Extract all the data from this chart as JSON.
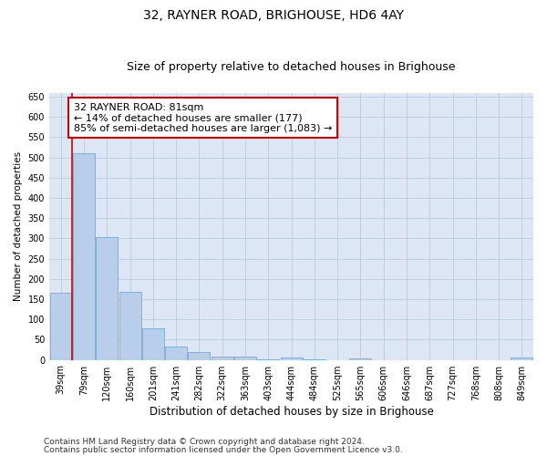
{
  "title": "32, RAYNER ROAD, BRIGHOUSE, HD6 4AY",
  "subtitle": "Size of property relative to detached houses in Brighouse",
  "xlabel": "Distribution of detached houses by size in Brighouse",
  "ylabel": "Number of detached properties",
  "categories": [
    "39sqm",
    "79sqm",
    "120sqm",
    "160sqm",
    "201sqm",
    "241sqm",
    "282sqm",
    "322sqm",
    "363sqm",
    "403sqm",
    "444sqm",
    "484sqm",
    "525sqm",
    "565sqm",
    "606sqm",
    "646sqm",
    "687sqm",
    "727sqm",
    "768sqm",
    "808sqm",
    "849sqm"
  ],
  "values": [
    165,
    510,
    302,
    167,
    77,
    32,
    20,
    7,
    8,
    1,
    5,
    1,
    0,
    4,
    0,
    0,
    0,
    0,
    0,
    0,
    5
  ],
  "bar_color": "#b8ceea",
  "bar_edge_color": "#7aa8d2",
  "property_line_color": "#cc0000",
  "annotation_text": "32 RAYNER ROAD: 81sqm\n← 14% of detached houses are smaller (177)\n85% of semi-detached houses are larger (1,083) →",
  "annotation_box_color": "#ffffff",
  "annotation_box_edge_color": "#cc0000",
  "ylim": [
    0,
    660
  ],
  "yticks": [
    0,
    50,
    100,
    150,
    200,
    250,
    300,
    350,
    400,
    450,
    500,
    550,
    600,
    650
  ],
  "grid_color": "#c0cfe0",
  "background_color": "#dce6f4",
  "fig_background": "#ffffff",
  "footer_line1": "Contains HM Land Registry data © Crown copyright and database right 2024.",
  "footer_line2": "Contains public sector information licensed under the Open Government Licence v3.0.",
  "title_fontsize": 10,
  "subtitle_fontsize": 9,
  "xlabel_fontsize": 8.5,
  "ylabel_fontsize": 7.5,
  "tick_fontsize": 7,
  "annotation_fontsize": 8,
  "footer_fontsize": 6.5
}
